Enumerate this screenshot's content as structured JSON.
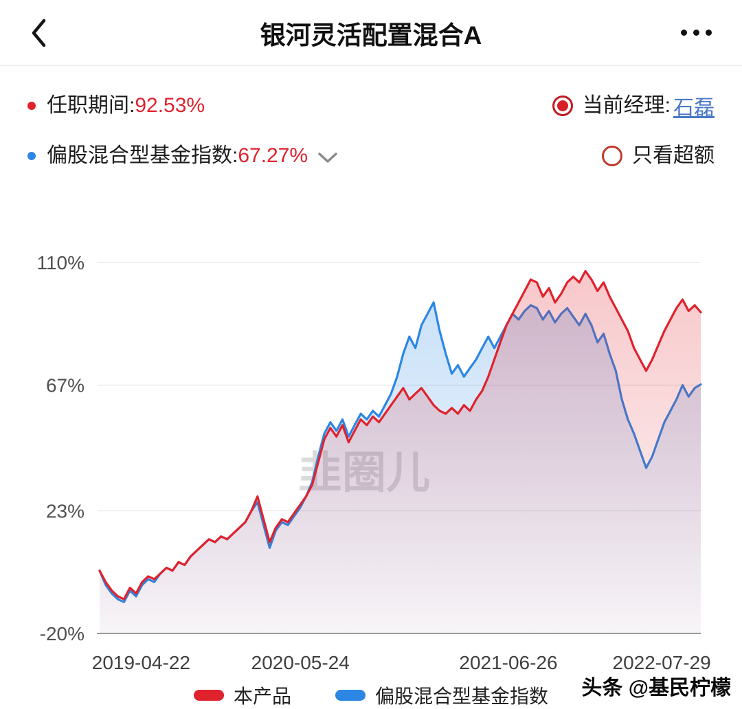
{
  "header": {
    "title": "银河灵活配置混合A"
  },
  "info": {
    "tenure_label": "任职期间:",
    "tenure_value": "92.53%",
    "index_label": "偏股混合型基金指数:",
    "index_value": "67.27%",
    "manager_label": "当前经理:",
    "manager_name": "石磊",
    "excess_label": "只看超额"
  },
  "colors": {
    "accent_red": "#e0222d",
    "accent_blue": "#2b87e3",
    "link_blue": "#4a78c8"
  },
  "watermark": {
    "chart": "韭圈儿",
    "footer": "头条 @基民柠檬"
  },
  "icons": {
    "back": "back-chevron",
    "more": "ellipsis-menu",
    "dropdown": "chevron-down"
  },
  "chart_data": {
    "type": "line",
    "title": "",
    "xlabel": "",
    "ylabel": "",
    "grid": true,
    "legend_position": "bottom",
    "ylim": [
      -20,
      110
    ],
    "yticks": [
      110,
      67,
      23,
      -20
    ],
    "ytick_suffix": "%",
    "xtick_labels": [
      "2019-04-22",
      "2020-05-24",
      "2021-06-26",
      "2022-07-29"
    ],
    "xtick_positions": [
      0.069,
      0.334,
      0.68,
      0.935
    ],
    "series": [
      {
        "name": "本产品",
        "color": "#e0222d",
        "final_value": 92.53,
        "values": [
          2,
          -2,
          -5,
          -7,
          -8,
          -4,
          -6,
          -2,
          0,
          -1,
          1,
          3,
          2,
          5,
          4,
          7,
          9,
          11,
          13,
          12,
          14,
          13,
          15,
          17,
          19,
          23,
          28,
          20,
          12,
          17,
          20,
          19,
          22,
          25,
          28,
          32,
          40,
          48,
          52,
          49,
          53,
          47,
          51,
          55,
          53,
          56,
          54,
          57,
          60,
          63,
          66,
          62,
          64,
          66,
          63,
          60,
          58,
          57,
          59,
          57,
          60,
          58,
          62,
          65,
          70,
          76,
          82,
          88,
          92,
          96,
          100,
          104,
          103,
          98,
          101,
          96,
          99,
          103,
          105,
          103,
          107,
          104,
          100,
          103,
          98,
          94,
          90,
          86,
          80,
          76,
          72,
          76,
          81,
          86,
          90,
          94,
          97,
          93,
          95,
          92.53
        ]
      },
      {
        "name": "偏股混合型基金指数",
        "color": "#2b87e3",
        "final_value": 67.27,
        "values": [
          2,
          -3,
          -6,
          -8,
          -9,
          -5,
          -7,
          -3,
          -1,
          -2,
          1,
          3,
          2,
          5,
          4,
          7,
          9,
          11,
          13,
          12,
          14,
          13,
          15,
          17,
          19,
          23,
          26,
          18,
          10,
          16,
          19,
          18,
          21,
          24,
          28,
          33,
          42,
          50,
          54,
          51,
          55,
          49,
          53,
          57,
          55,
          58,
          56,
          60,
          64,
          70,
          78,
          84,
          80,
          88,
          92,
          96,
          86,
          78,
          71,
          74,
          70,
          73,
          76,
          80,
          84,
          80,
          84,
          88,
          92,
          90,
          93,
          95,
          94,
          90,
          93,
          89,
          92,
          94,
          91,
          88,
          92,
          88,
          82,
          85,
          78,
          72,
          62,
          55,
          50,
          44,
          38,
          42,
          48,
          54,
          58,
          62,
          67,
          63,
          66,
          67.27
        ]
      }
    ]
  }
}
